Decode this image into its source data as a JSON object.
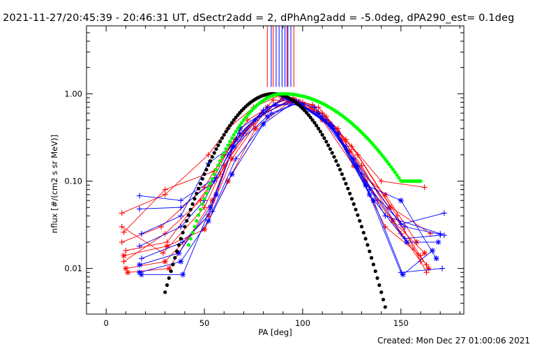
{
  "header": {
    "title": "2021-11-27/20:45:39 - 20:46:31 UT, dSectr2add = 2, dPhAng2add = -5.0deg, dPA290_est=  0.1deg"
  },
  "footer": {
    "created": "Created: Mon Dec 27 01:00:06 2021"
  },
  "chart_data": {
    "type": "scatter",
    "title": "2021-11-27/20:45:39 - 20:46:31 UT, dSectr2add = 2, dPhAng2add = -5.0deg, dPA290_est=  0.1deg",
    "xlabel": "PA [deg]",
    "ylabel": "nflux [#/(cm2 s sr MeV)]",
    "xlim": [
      -10,
      182
    ],
    "ylim": [
      0.003,
      6
    ],
    "yscale": "log",
    "grid": false,
    "x_ticks": [
      0,
      50,
      100,
      150
    ],
    "x_tick_labels": [
      "0",
      "50",
      "100",
      "150"
    ],
    "y_ticks": [
      0.01,
      0.1,
      1.0
    ],
    "y_tick_labels": [
      "0.01",
      "0.10",
      "1.00"
    ],
    "colors": {
      "red": "#ff0000",
      "blue": "#0000ff",
      "black": "#000000",
      "green": "#00ff00"
    },
    "vertical_markers": {
      "red_x": [
        82,
        85,
        92,
        95.5
      ],
      "blue_x": [
        84,
        86.5,
        88,
        89.5,
        91,
        92.5,
        94
      ],
      "y_from": 1.2,
      "y_to": 6
    },
    "series": [
      {
        "color": "red",
        "marker": "plus",
        "x": [
          8,
          30,
          52,
          62,
          75,
          88,
          105,
          122,
          140,
          162
        ],
        "y": [
          0.043,
          0.07,
          0.2,
          0.4,
          0.7,
          0.95,
          0.75,
          0.3,
          0.1,
          0.085
        ]
      },
      {
        "color": "red",
        "marker": "plus",
        "x": [
          9,
          30,
          55,
          65,
          80,
          92,
          108,
          125,
          145,
          165
        ],
        "y": [
          0.026,
          0.08,
          0.13,
          0.28,
          0.65,
          0.9,
          0.7,
          0.25,
          0.05,
          0.025
        ]
      },
      {
        "color": "red",
        "marker": "plus",
        "x": [
          8,
          28,
          50,
          60,
          72,
          90,
          110,
          128,
          148,
          163
        ],
        "y": [
          0.02,
          0.03,
          0.085,
          0.2,
          0.5,
          0.88,
          0.6,
          0.2,
          0.04,
          0.009
        ]
      },
      {
        "color": "red",
        "marker": "plus",
        "x": [
          9,
          30,
          48,
          58,
          70,
          85,
          100,
          118,
          138,
          160
        ],
        "y": [
          0.012,
          0.025,
          0.06,
          0.12,
          0.35,
          0.85,
          0.8,
          0.4,
          0.06,
          0.012
        ]
      },
      {
        "color": "red",
        "marker": "plus",
        "x": [
          10,
          31,
          53,
          63,
          78,
          95,
          112,
          130,
          150,
          163
        ],
        "y": [
          0.016,
          0.02,
          0.09,
          0.25,
          0.55,
          0.9,
          0.55,
          0.15,
          0.025,
          0.011
        ]
      },
      {
        "color": "red",
        "marker": "plus",
        "x": [
          8,
          29,
          50,
          60,
          75,
          90,
          105,
          120,
          142,
          160
        ],
        "y": [
          0.03,
          0.015,
          0.05,
          0.15,
          0.45,
          0.92,
          0.7,
          0.3,
          0.03,
          0.014
        ]
      },
      {
        "color": "red",
        "marker": "asterisk",
        "x": [
          10,
          30,
          52,
          64,
          80,
          96,
          110,
          126,
          142,
          158
        ],
        "y": [
          0.01,
          0.012,
          0.04,
          0.18,
          0.6,
          0.85,
          0.5,
          0.15,
          0.07,
          0.02
        ]
      },
      {
        "color": "red",
        "marker": "asterisk",
        "x": [
          9,
          31,
          50,
          62,
          76,
          93,
          108,
          124,
          144,
          164
        ],
        "y": [
          0.014,
          0.018,
          0.028,
          0.1,
          0.4,
          0.8,
          0.6,
          0.22,
          0.05,
          0.01
        ]
      },
      {
        "color": "red",
        "marker": "asterisk",
        "x": [
          11,
          32,
          54,
          66,
          82,
          98,
          114,
          132,
          146,
          162
        ],
        "y": [
          0.009,
          0.01,
          0.06,
          0.3,
          0.7,
          0.82,
          0.45,
          0.1,
          0.035,
          0.015
        ]
      },
      {
        "color": "blue",
        "marker": "plus",
        "x": [
          17,
          38,
          56,
          66,
          80,
          92,
          106,
          122,
          142,
          170
        ],
        "y": [
          0.068,
          0.06,
          0.11,
          0.3,
          0.65,
          0.88,
          0.7,
          0.25,
          0.04,
          0.025
        ]
      },
      {
        "color": "blue",
        "marker": "plus",
        "x": [
          17,
          38,
          55,
          68,
          82,
          95,
          110,
          126,
          150,
          172
        ],
        "y": [
          0.048,
          0.05,
          0.1,
          0.35,
          0.7,
          0.8,
          0.55,
          0.18,
          0.032,
          0.043
        ]
      },
      {
        "color": "blue",
        "marker": "plus",
        "x": [
          18,
          38,
          52,
          64,
          78,
          94,
          112,
          130,
          152,
          170
        ],
        "y": [
          0.025,
          0.04,
          0.16,
          0.25,
          0.55,
          0.85,
          0.5,
          0.12,
          0.022,
          0.024
        ]
      },
      {
        "color": "blue",
        "marker": "plus",
        "x": [
          17,
          38,
          50,
          62,
          76,
          90,
          108,
          128,
          150,
          171
        ],
        "y": [
          0.018,
          0.03,
          0.06,
          0.2,
          0.5,
          0.9,
          0.6,
          0.15,
          0.009,
          0.01
        ]
      },
      {
        "color": "blue",
        "marker": "plus",
        "x": [
          18,
          39,
          54,
          66,
          84,
          98,
          116,
          134,
          152,
          172
        ],
        "y": [
          0.013,
          0.02,
          0.045,
          0.18,
          0.6,
          0.8,
          0.4,
          0.08,
          0.03,
          0.024
        ]
      },
      {
        "color": "blue",
        "marker": "asterisk",
        "x": [
          17,
          38,
          52,
          64,
          80,
          96,
          114,
          132,
          150,
          168
        ],
        "y": [
          0.009,
          0.012,
          0.035,
          0.12,
          0.45,
          0.82,
          0.45,
          0.09,
          0.06,
          0.013
        ]
      },
      {
        "color": "blue",
        "marker": "asterisk",
        "x": [
          18,
          39,
          56,
          68,
          86,
          100,
          118,
          136,
          151,
          166
        ],
        "y": [
          0.0085,
          0.0085,
          0.07,
          0.4,
          0.75,
          0.75,
          0.35,
          0.06,
          0.0085,
          0.016
        ]
      },
      {
        "color": "blue",
        "marker": "asterisk",
        "x": [
          17,
          37,
          53,
          65,
          82,
          97,
          115,
          134,
          153,
          169
        ],
        "y": [
          0.011,
          0.015,
          0.05,
          0.25,
          0.55,
          0.78,
          0.42,
          0.07,
          0.02,
          0.02
        ]
      },
      {
        "color": "black",
        "marker": "dot",
        "fit": "gaussian",
        "center": 85,
        "sigma": 17,
        "peak": 1.0,
        "x_range": [
          30,
          160
        ],
        "step": 1
      },
      {
        "color": "green",
        "marker": "dot",
        "fit": "gaussian",
        "center": 90,
        "sigma": 17,
        "peak": 1.0,
        "x_range": [
          42,
          160
        ],
        "step": 1,
        "y_floor": 0.1
      }
    ]
  }
}
